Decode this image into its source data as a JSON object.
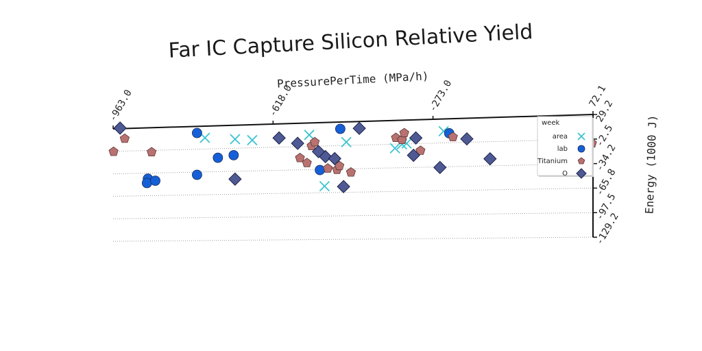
{
  "chart_data": {
    "type": "scatter",
    "title": "Far IC Capture Silicon Relative Yield",
    "xlabel": "PressurePerTime (MPa/h)",
    "ylabel": "Energy (1000 J)",
    "xlim": [
      -963.0,
      72.1
    ],
    "ylim": [
      -129.2,
      29.2
    ],
    "x_ticks": [
      "-963.0",
      "-618.0",
      "-273.0",
      "72.1"
    ],
    "y_ticks": [
      "29.2",
      "-2.5",
      "-34.2",
      "-65.8",
      "-97.5",
      "-129.2"
    ],
    "grid": true,
    "legend": {
      "title": "week",
      "position": "top-right",
      "entries": [
        "area",
        "lab",
        "Titanium",
        "O"
      ]
    },
    "series": [
      {
        "name": "area",
        "marker": "x",
        "color": "#3cc4d0",
        "points": [
          [
            -765,
            13
          ],
          [
            -700,
            10
          ],
          [
            -663,
            8
          ],
          [
            -540,
            13
          ],
          [
            -460,
            2
          ],
          [
            -355,
            -8
          ],
          [
            -340,
            -3
          ],
          [
            -330,
            -2
          ],
          [
            -250,
            13
          ],
          [
            -507,
            -57
          ]
        ]
      },
      {
        "name": "lab",
        "marker": "o",
        "color": "#1560d8",
        "points": [
          [
            -473,
            20
          ],
          [
            -782,
            20
          ],
          [
            -703,
            -12
          ],
          [
            -737,
            -15
          ],
          [
            -888,
            -42
          ],
          [
            -890,
            -48
          ],
          [
            -872,
            -45
          ],
          [
            -782,
            -38
          ],
          [
            -517,
            -35
          ],
          [
            -238,
            10
          ]
        ]
      },
      {
        "name": "Titanium",
        "marker": "pentagon",
        "color": "#b87270",
        "points": [
          [
            -938,
            15
          ],
          [
            -962,
            -3
          ],
          [
            -880,
            -5
          ],
          [
            -535,
            -2
          ],
          [
            -528,
            3
          ],
          [
            -560,
            -18
          ],
          [
            -545,
            -25
          ],
          [
            -480,
            -35
          ],
          [
            -450,
            -39
          ],
          [
            -353,
            6
          ],
          [
            -340,
            3
          ],
          [
            -475,
            -30
          ],
          [
            -500,
            -33
          ],
          [
            -335,
            12
          ],
          [
            -300,
            -12
          ],
          [
            -230,
            5
          ],
          [
            70,
            -8
          ]
        ]
      },
      {
        "name": "O",
        "marker": "diamond",
        "color": "#4f5a94",
        "points": [
          [
            -948,
            30
          ],
          [
            -605,
            10
          ],
          [
            -565,
            2
          ],
          [
            -505,
            -17
          ],
          [
            -485,
            -20
          ],
          [
            -432,
            20
          ],
          [
            -520,
            -10
          ],
          [
            -310,
            5
          ],
          [
            -200,
            2
          ],
          [
            -315,
            -18
          ],
          [
            -258,
            -35
          ],
          [
            -700,
            -45
          ],
          [
            -466,
            -58
          ],
          [
            -150,
            -25
          ]
        ]
      }
    ]
  }
}
